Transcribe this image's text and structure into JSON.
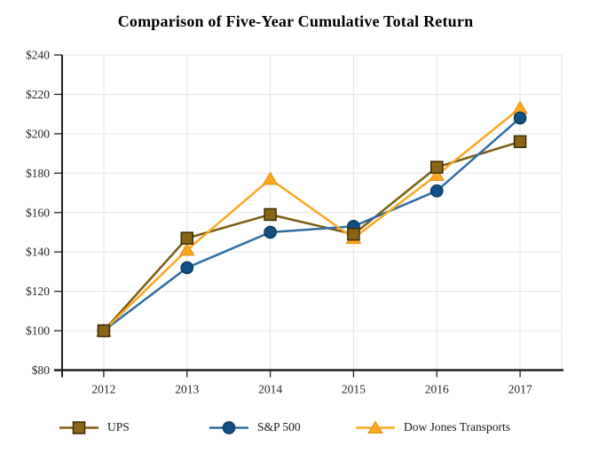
{
  "title": "Comparison of Five-Year Cumulative Total Return",
  "chart_data": {
    "type": "line",
    "title": "Comparison of Five-Year Cumulative Total Return",
    "categories": [
      "2012",
      "2013",
      "2014",
      "2015",
      "2016",
      "2017"
    ],
    "series": [
      {
        "name": "UPS",
        "marker": "square",
        "line_color": "#7d5c12",
        "marker_fill": "#8a6517",
        "marker_stroke": "#3a2d08",
        "values": [
          100,
          147,
          159,
          149,
          183,
          196
        ]
      },
      {
        "name": "S&P 500",
        "marker": "circle",
        "line_color": "#2e6da4",
        "marker_fill": "#125083",
        "marker_stroke": "#0a3a63",
        "values": [
          100,
          132,
          150,
          153,
          171,
          208
        ]
      },
      {
        "name": "Dow Jones Transports",
        "marker": "triangle",
        "line_color": "#f9a81f",
        "marker_fill": "#f9a81f",
        "marker_stroke": "#e08e12",
        "values": [
          100,
          141,
          177,
          147,
          179,
          213
        ]
      }
    ],
    "xlabel": "",
    "ylabel": "",
    "ylim": [
      80,
      240
    ],
    "ytick_step": 20,
    "ytick_labels": [
      "$80",
      "$100",
      "$120",
      "$140",
      "$160",
      "$180",
      "$200",
      "$220",
      "$240"
    ],
    "grid": true,
    "grid_color": "#e6e6e6",
    "axis_color": "#1f1f1f",
    "tick_label_color": "#262626",
    "legend_position": "bottom"
  }
}
